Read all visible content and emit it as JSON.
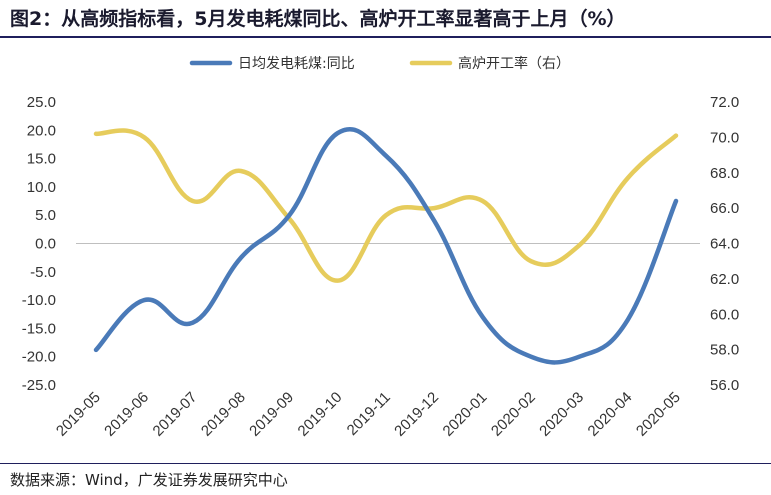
{
  "title": "图2：从高频指标看，5月发电耗煤同比、高炉开工率显著高于上月（%）",
  "source": "数据来源：Wind，广发证券发展研究中心",
  "colors": {
    "series_left": "#4a7ab8",
    "series_right": "#e6cc5c",
    "zero_line": "#bfbfbf",
    "rule": "#1f1f5c"
  },
  "chart_data": {
    "type": "line",
    "categories": [
      "2019-05",
      "2019-06",
      "2019-07",
      "2019-08",
      "2019-09",
      "2019-10",
      "2019-11",
      "2019-12",
      "2020-01",
      "2020-02",
      "2020-03",
      "2020-04",
      "2020-05"
    ],
    "series": [
      {
        "name": "日均发电耗煤:同比",
        "axis": "left",
        "color": "#4a7ab8",
        "values": [
          -18.8,
          -10.0,
          -14.0,
          -2.5,
          5.0,
          19.5,
          15.5,
          4.0,
          -13.0,
          -20.0,
          -20.0,
          -13.5,
          7.5
        ]
      },
      {
        "name": "高炉开工率（右）",
        "axis": "right",
        "color": "#e6cc5c",
        "values": [
          70.2,
          70.0,
          66.4,
          68.1,
          65.4,
          61.9,
          65.6,
          66.0,
          66.4,
          63.0,
          63.9,
          67.7,
          70.1
        ]
      }
    ],
    "y_left": {
      "min": -25,
      "max": 25,
      "ticks": [
        "25.0",
        "20.0",
        "15.0",
        "10.0",
        "5.0",
        "0.0",
        "-5.0",
        "-10.0",
        "-15.0",
        "-20.0",
        "-25.0"
      ]
    },
    "y_right": {
      "min": 56,
      "max": 72,
      "ticks": [
        "72.0",
        "70.0",
        "68.0",
        "66.0",
        "64.0",
        "62.0",
        "60.0",
        "58.0",
        "56.0"
      ]
    },
    "legend_position": "top",
    "grid": false
  }
}
